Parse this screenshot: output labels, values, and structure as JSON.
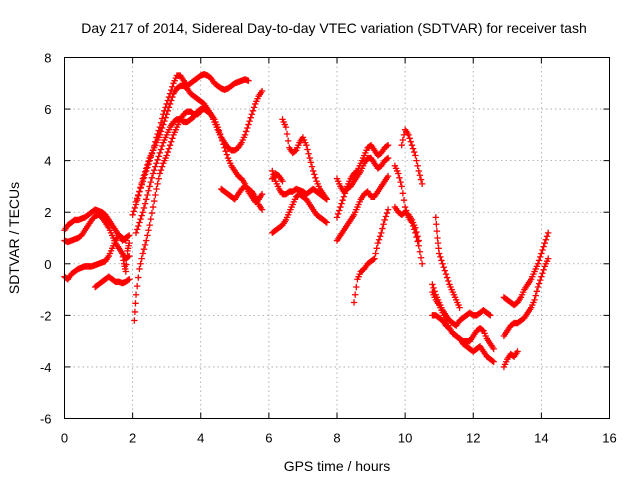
{
  "chart_data": {
    "type": "scatter",
    "title": "Day 217 of 2014, Sidereal Day-to-day VTEC variation (SDTVAR) for receiver tash",
    "xlabel": "GPS time / hours",
    "ylabel": "SDTVAR / TECUs",
    "xlim": [
      0,
      16
    ],
    "ylim": [
      -6,
      8
    ],
    "xticks": [
      0,
      2,
      4,
      6,
      8,
      10,
      12,
      14,
      16
    ],
    "yticks": [
      -6,
      -4,
      -2,
      0,
      2,
      4,
      6,
      8
    ],
    "xtick_labels": [
      "0",
      "2",
      "4",
      "6",
      "8",
      "10",
      "12",
      "14",
      "16"
    ],
    "ytick_labels": [
      "-6",
      "-4",
      "-2",
      "0",
      "2",
      "4",
      "6",
      "8"
    ],
    "grid": true,
    "marker": "+",
    "series": [
      {
        "color": "#ff0000",
        "x": [
          0.0,
          0.1,
          0.2,
          0.3,
          0.4,
          0.5,
          0.6,
          0.7,
          0.8,
          0.9,
          1.0,
          1.1,
          1.2,
          1.3,
          1.4,
          1.5,
          1.6,
          1.7,
          1.8,
          1.9
        ],
        "y": [
          1.3,
          1.5,
          1.6,
          1.7,
          1.7,
          1.75,
          1.8,
          1.9,
          2.0,
          2.1,
          2.05,
          2.0,
          1.9,
          1.7,
          1.5,
          1.3,
          1.1,
          0.9,
          1.0,
          1.1
        ]
      },
      {
        "color": "#ff0000",
        "x": [
          0.0,
          0.1,
          0.2,
          0.3,
          0.4,
          0.5,
          0.6,
          0.7,
          0.8,
          0.9,
          1.0,
          1.1,
          1.2,
          1.3,
          1.4,
          1.5,
          1.6,
          1.7,
          1.8,
          1.9
        ],
        "y": [
          0.9,
          0.85,
          0.9,
          0.95,
          1.0,
          1.1,
          1.3,
          1.5,
          1.7,
          1.85,
          1.9,
          1.8,
          1.6,
          1.4,
          1.1,
          0.8,
          0.6,
          0.4,
          0.2,
          0.3
        ]
      },
      {
        "color": "#ff0000",
        "x": [
          0.0,
          0.1,
          0.2,
          0.3,
          0.4,
          0.5,
          0.6,
          0.7,
          0.8,
          0.9,
          1.0,
          1.1,
          1.2,
          1.3,
          1.4,
          1.5,
          1.6,
          1.7,
          1.8
        ],
        "y": [
          -0.5,
          -0.6,
          -0.4,
          -0.3,
          -0.2,
          -0.15,
          -0.1,
          -0.1,
          -0.1,
          -0.05,
          0.0,
          0.05,
          0.1,
          0.3,
          0.6,
          0.9,
          1.1,
          1.0,
          0.9
        ]
      },
      {
        "color": "#ff0000",
        "x": [
          0.9,
          1.0,
          1.1,
          1.2,
          1.3,
          1.4,
          1.5,
          1.6,
          1.7,
          1.8,
          1.9
        ],
        "y": [
          -0.9,
          -0.8,
          -0.7,
          -0.6,
          -0.5,
          -0.6,
          -0.7,
          -0.7,
          -0.75,
          -0.7,
          -0.6
        ]
      },
      {
        "color": "#ff0000",
        "x": [
          1.7,
          1.75,
          1.8,
          1.85,
          1.9
        ],
        "y": [
          0.4,
          0.0,
          -0.3,
          0.5,
          0.8
        ]
      },
      {
        "color": "#ff0000",
        "x": [
          2.1,
          2.2,
          2.3,
          2.4,
          2.5,
          2.6,
          2.7,
          2.8,
          2.9,
          3.0,
          3.1,
          3.2,
          3.3,
          3.4,
          3.5,
          3.6,
          3.7,
          3.8,
          3.9,
          4.0,
          4.1,
          4.2,
          4.3,
          4.4,
          4.5,
          4.6,
          4.7,
          4.8,
          4.9,
          5.0,
          5.1,
          5.2,
          5.3,
          5.4
        ],
        "y": [
          2.4,
          2.8,
          3.2,
          3.6,
          4.0,
          4.4,
          4.9,
          5.3,
          5.8,
          6.2,
          6.6,
          7.0,
          7.3,
          7.3,
          7.1,
          6.9,
          7.0,
          7.1,
          7.2,
          7.3,
          7.35,
          7.3,
          7.2,
          7.0,
          6.9,
          6.8,
          6.75,
          6.8,
          6.9,
          7.0,
          7.05,
          7.1,
          7.15,
          7.1
        ]
      },
      {
        "color": "#ff0000",
        "x": [
          2.0,
          2.1,
          2.2,
          2.3,
          2.4,
          2.5,
          2.6,
          2.7,
          2.8,
          2.9,
          3.0,
          3.1,
          3.2,
          3.3,
          3.4,
          3.5,
          3.6,
          3.7,
          3.8,
          3.9,
          4.0,
          4.1,
          4.2,
          4.3,
          4.4,
          4.5,
          4.6,
          4.7,
          4.8,
          4.9,
          5.0,
          5.1,
          5.2,
          5.3,
          5.4,
          5.5,
          5.6,
          5.7,
          5.8
        ],
        "y": [
          1.9,
          2.3,
          2.8,
          3.3,
          3.7,
          4.1,
          4.4,
          4.7,
          5.0,
          5.4,
          5.8,
          6.2,
          6.6,
          6.8,
          6.9,
          6.9,
          6.8,
          6.6,
          6.5,
          6.4,
          6.3,
          6.2,
          6.0,
          5.8,
          5.5,
          5.2,
          4.9,
          4.7,
          4.5,
          4.4,
          4.4,
          4.5,
          4.7,
          5.0,
          5.4,
          5.8,
          6.2,
          6.5,
          6.7
        ]
      },
      {
        "color": "#ff0000",
        "x": [
          2.1,
          2.2,
          2.3,
          2.4,
          2.5,
          2.6,
          2.7,
          2.8,
          2.9,
          3.0,
          3.1,
          3.2,
          3.3,
          3.4,
          3.5,
          3.6,
          3.7,
          3.8,
          3.9,
          4.0,
          4.1,
          4.2,
          4.3,
          4.4,
          4.5,
          4.6,
          4.7,
          4.8,
          4.9,
          5.0,
          5.1,
          5.2,
          5.3,
          5.4,
          5.5,
          5.6,
          5.7,
          5.8
        ],
        "y": [
          1.2,
          1.6,
          2.0,
          2.5,
          3.0,
          3.5,
          3.9,
          4.3,
          4.7,
          5.0,
          5.3,
          5.5,
          5.6,
          5.6,
          5.5,
          5.5,
          5.6,
          5.7,
          5.9,
          6.0,
          6.0,
          5.9,
          5.8,
          5.6,
          5.3,
          4.9,
          4.5,
          4.1,
          3.8,
          3.6,
          3.4,
          3.3,
          3.1,
          2.8,
          2.6,
          2.4,
          2.5,
          2.7
        ]
      },
      {
        "color": "#ff0000",
        "x": [
          2.05,
          2.1,
          2.2,
          2.3,
          2.4,
          2.5,
          2.6,
          2.7,
          2.8,
          2.9,
          3.0,
          3.1,
          3.2,
          3.3,
          3.4,
          3.5,
          3.6,
          3.7,
          3.8,
          3.9,
          4.0
        ],
        "y": [
          -2.2,
          -1.2,
          -0.2,
          0.4,
          0.9,
          1.5,
          2.2,
          2.9,
          3.5,
          3.9,
          4.2,
          4.6,
          5.0,
          5.3,
          5.6,
          5.8,
          5.9,
          5.9,
          5.8,
          5.8,
          5.9
        ]
      },
      {
        "color": "#ff0000",
        "x": [
          4.6,
          4.7,
          4.8,
          4.9,
          5.0,
          5.1,
          5.2,
          5.3,
          5.4,
          5.5,
          5.6,
          5.7,
          5.8
        ],
        "y": [
          2.9,
          2.8,
          2.7,
          2.6,
          2.5,
          2.7,
          2.9,
          3.0,
          2.9,
          2.8,
          2.6,
          2.3,
          2.1
        ]
      },
      {
        "color": "#ff0000",
        "x": [
          6.1,
          6.2,
          6.3,
          6.4,
          6.5,
          6.6,
          6.7,
          6.8,
          6.9,
          7.0,
          7.1,
          7.2,
          7.3,
          7.4,
          7.5,
          7.6,
          7.7
        ],
        "y": [
          1.2,
          1.3,
          1.4,
          1.5,
          1.7,
          2.0,
          2.3,
          2.6,
          2.7,
          2.6,
          2.5,
          2.3,
          2.1,
          1.9,
          1.8,
          1.7,
          1.6
        ]
      },
      {
        "color": "#ff0000",
        "x": [
          6.1,
          6.2,
          6.3,
          6.4,
          6.5,
          6.6,
          6.7,
          6.8,
          6.9,
          7.0,
          7.1,
          7.2,
          7.3,
          7.4,
          7.5,
          7.6,
          7.7
        ],
        "y": [
          3.6,
          3.2,
          2.9,
          2.7,
          2.7,
          2.8,
          2.8,
          2.9,
          2.85,
          2.8,
          2.7,
          2.8,
          2.9,
          2.8,
          2.7,
          2.6,
          2.5
        ]
      },
      {
        "color": "#ff0000",
        "x": [
          6.4,
          6.5,
          6.6,
          6.7,
          6.8,
          6.9,
          7.0,
          7.1,
          7.2,
          7.3,
          7.4,
          7.5,
          7.6,
          7.7
        ],
        "y": [
          5.6,
          5.3,
          4.5,
          4.3,
          4.4,
          4.7,
          4.9,
          4.6,
          4.1,
          3.6,
          3.2,
          2.9,
          2.7,
          2.5
        ]
      },
      {
        "color": "#ff0000",
        "x": [
          6.1,
          6.2,
          6.3,
          6.4
        ],
        "y": [
          3.3,
          3.5,
          3.4,
          3.2
        ]
      },
      {
        "color": "#ff0000",
        "x": [
          8.0,
          8.1,
          8.2,
          8.3,
          8.4,
          8.5,
          8.6,
          8.7,
          8.8,
          8.9,
          9.0,
          9.1,
          9.2,
          9.3,
          9.4,
          9.5
        ],
        "y": [
          1.8,
          2.2,
          2.6,
          3.0,
          3.3,
          3.5,
          3.6,
          3.9,
          4.2,
          4.5,
          4.6,
          4.4,
          4.2,
          4.3,
          4.5,
          4.6
        ]
      },
      {
        "color": "#ff0000",
        "x": [
          8.0,
          8.1,
          8.2,
          8.3,
          8.4,
          8.5,
          8.6,
          8.7,
          8.8,
          8.9,
          9.0,
          9.1,
          9.2,
          9.3,
          9.4,
          9.5
        ],
        "y": [
          3.3,
          3.0,
          2.8,
          2.9,
          3.0,
          3.2,
          3.4,
          3.6,
          3.9,
          4.1,
          4.1,
          3.9,
          3.7,
          3.8,
          4.0,
          4.1
        ]
      },
      {
        "color": "#ff0000",
        "x": [
          8.0,
          8.1,
          8.2,
          8.3,
          8.4,
          8.5,
          8.6,
          8.7,
          8.8,
          8.9,
          9.0,
          9.1,
          9.2,
          9.3,
          9.4,
          9.5
        ],
        "y": [
          0.9,
          1.1,
          1.3,
          1.5,
          1.7,
          1.9,
          2.2,
          2.5,
          2.7,
          2.8,
          2.6,
          2.6,
          2.8,
          3.0,
          3.2,
          3.4
        ]
      },
      {
        "color": "#ff0000",
        "x": [
          8.5,
          8.6,
          8.7,
          8.8,
          8.9,
          9.0,
          9.1,
          9.2,
          9.3,
          9.4,
          9.5
        ],
        "y": [
          -1.5,
          -0.6,
          -0.3,
          -0.2,
          0.0,
          0.1,
          0.2,
          0.8,
          1.2,
          1.7,
          2.1
        ]
      },
      {
        "color": "#ff0000",
        "x": [
          9.7,
          9.8,
          9.9,
          10.0,
          10.1,
          10.2,
          10.3,
          10.4,
          10.5
        ],
        "y": [
          3.8,
          3.5,
          3.0,
          2.2,
          1.8,
          1.6,
          1.2,
          0.7,
          0.0
        ]
      },
      {
        "color": "#ff0000",
        "x": [
          9.7,
          9.8,
          9.9,
          10.0,
          10.1,
          10.2,
          10.3,
          10.4
        ],
        "y": [
          2.2,
          2.0,
          1.9,
          2.0,
          1.9,
          1.7,
          1.4,
          0.9
        ]
      },
      {
        "color": "#ff0000",
        "x": [
          9.9,
          10.0,
          10.1,
          10.2,
          10.3,
          10.4,
          10.5
        ],
        "y": [
          4.6,
          5.2,
          5.0,
          4.6,
          4.2,
          3.6,
          3.1
        ]
      },
      {
        "color": "#ff0000",
        "x": [
          10.8,
          10.9,
          11.0,
          11.1,
          11.2,
          11.3,
          11.4,
          11.5,
          11.6,
          11.7,
          11.8,
          11.9,
          12.0,
          12.1,
          12.2,
          12.3,
          12.4,
          12.5
        ],
        "y": [
          -0.8,
          -1.2,
          -1.5,
          -1.8,
          -2.0,
          -2.2,
          -2.3,
          -2.4,
          -2.2,
          -2.1,
          -2.0,
          -1.9,
          -2.0,
          -2.0,
          -1.9,
          -1.8,
          -1.9,
          -2.0
        ]
      },
      {
        "color": "#ff0000",
        "x": [
          10.8,
          10.9,
          11.0,
          11.1,
          11.2,
          11.3,
          11.4,
          11.5,
          11.6,
          11.7,
          11.8,
          11.9,
          12.0,
          12.1,
          12.2,
          12.3,
          12.4,
          12.5,
          12.6
        ],
        "y": [
          -1.1,
          -1.4,
          -1.6,
          -1.9,
          -2.2,
          -2.5,
          -2.7,
          -2.8,
          -2.9,
          -3.0,
          -3.0,
          -3.0,
          -2.8,
          -2.6,
          -2.5,
          -2.6,
          -2.9,
          -3.1,
          -3.3
        ]
      },
      {
        "color": "#ff0000",
        "x": [
          10.8,
          10.9,
          11.0,
          11.1,
          11.2,
          11.3,
          11.4,
          11.5,
          11.6,
          11.7,
          11.8,
          11.9,
          12.0,
          12.1,
          12.2,
          12.3,
          12.4,
          12.5,
          12.6
        ],
        "y": [
          -2.0,
          -2.0,
          -2.1,
          -2.2,
          -2.4,
          -2.5,
          -2.7,
          -2.8,
          -2.9,
          -3.1,
          -3.2,
          -3.3,
          -3.4,
          -3.3,
          -3.2,
          -3.4,
          -3.6,
          -3.7,
          -3.8
        ]
      },
      {
        "color": "#ff0000",
        "x": [
          10.9,
          10.95,
          11.0,
          11.1,
          11.2,
          11.3,
          11.4,
          11.5,
          11.6
        ],
        "y": [
          1.8,
          1.0,
          0.4,
          0.0,
          -0.4,
          -0.8,
          -1.1,
          -1.4,
          -1.7
        ]
      },
      {
        "color": "#ff0000",
        "x": [
          12.9,
          13.0,
          13.1,
          13.2,
          13.3,
          13.4,
          13.5,
          13.6,
          13.7,
          13.8,
          13.9,
          14.0,
          14.1,
          14.2
        ],
        "y": [
          -1.3,
          -1.4,
          -1.5,
          -1.6,
          -1.5,
          -1.3,
          -1.0,
          -0.8,
          -0.6,
          -0.3,
          0.0,
          0.4,
          0.8,
          1.2
        ]
      },
      {
        "color": "#ff0000",
        "x": [
          12.9,
          13.0,
          13.1,
          13.2,
          13.3,
          13.4,
          13.5,
          13.6,
          13.7,
          13.8,
          13.9,
          14.0,
          14.1,
          14.2
        ],
        "y": [
          -2.8,
          -2.6,
          -2.4,
          -2.3,
          -2.3,
          -2.2,
          -2.1,
          -1.9,
          -1.7,
          -1.4,
          -0.9,
          -0.5,
          -0.1,
          0.2
        ]
      },
      {
        "color": "#ff0000",
        "x": [
          12.9,
          13.0,
          13.1,
          13.2,
          13.3
        ],
        "y": [
          -4.0,
          -3.7,
          -3.5,
          -3.6,
          -3.4
        ]
      }
    ]
  }
}
